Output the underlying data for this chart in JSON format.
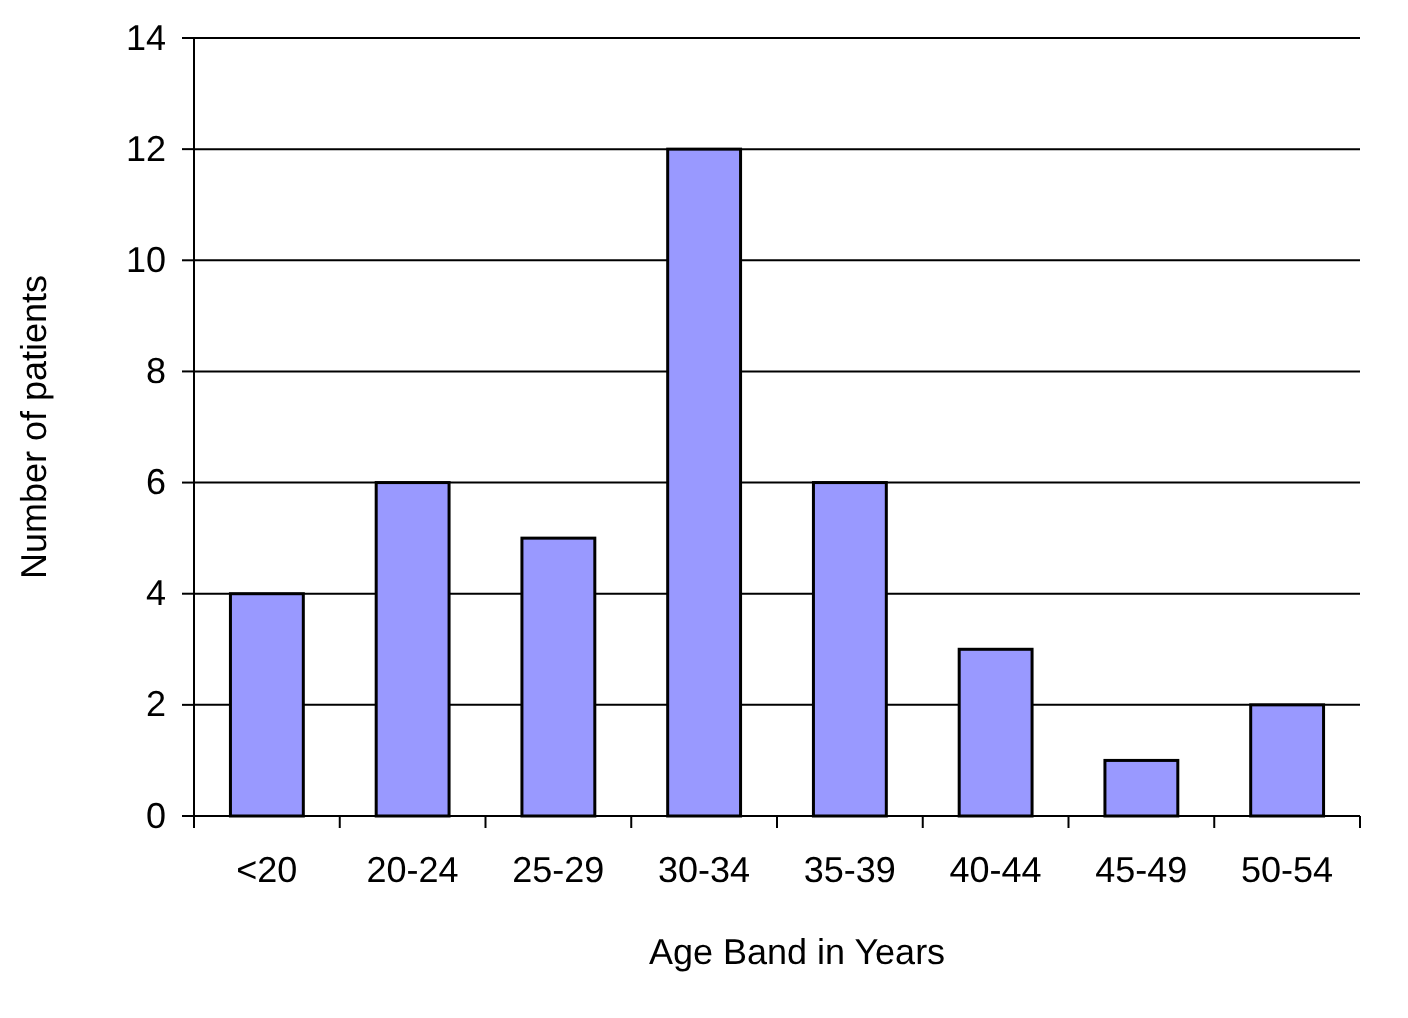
{
  "chart_data": {
    "type": "bar",
    "xlabel": "Age Band in Years",
    "ylabel": "Number of patients",
    "categories": [
      "<20",
      "20-24",
      "25-29",
      "30-34",
      "35-39",
      "40-44",
      "45-49",
      "50-54"
    ],
    "values": [
      4,
      6,
      5,
      12,
      6,
      3,
      1,
      2
    ],
    "color": "#9999ff",
    "ylim": [
      0,
      14
    ],
    "yticks": [
      0,
      2,
      4,
      6,
      8,
      10,
      12,
      14
    ],
    "grid": "y"
  }
}
